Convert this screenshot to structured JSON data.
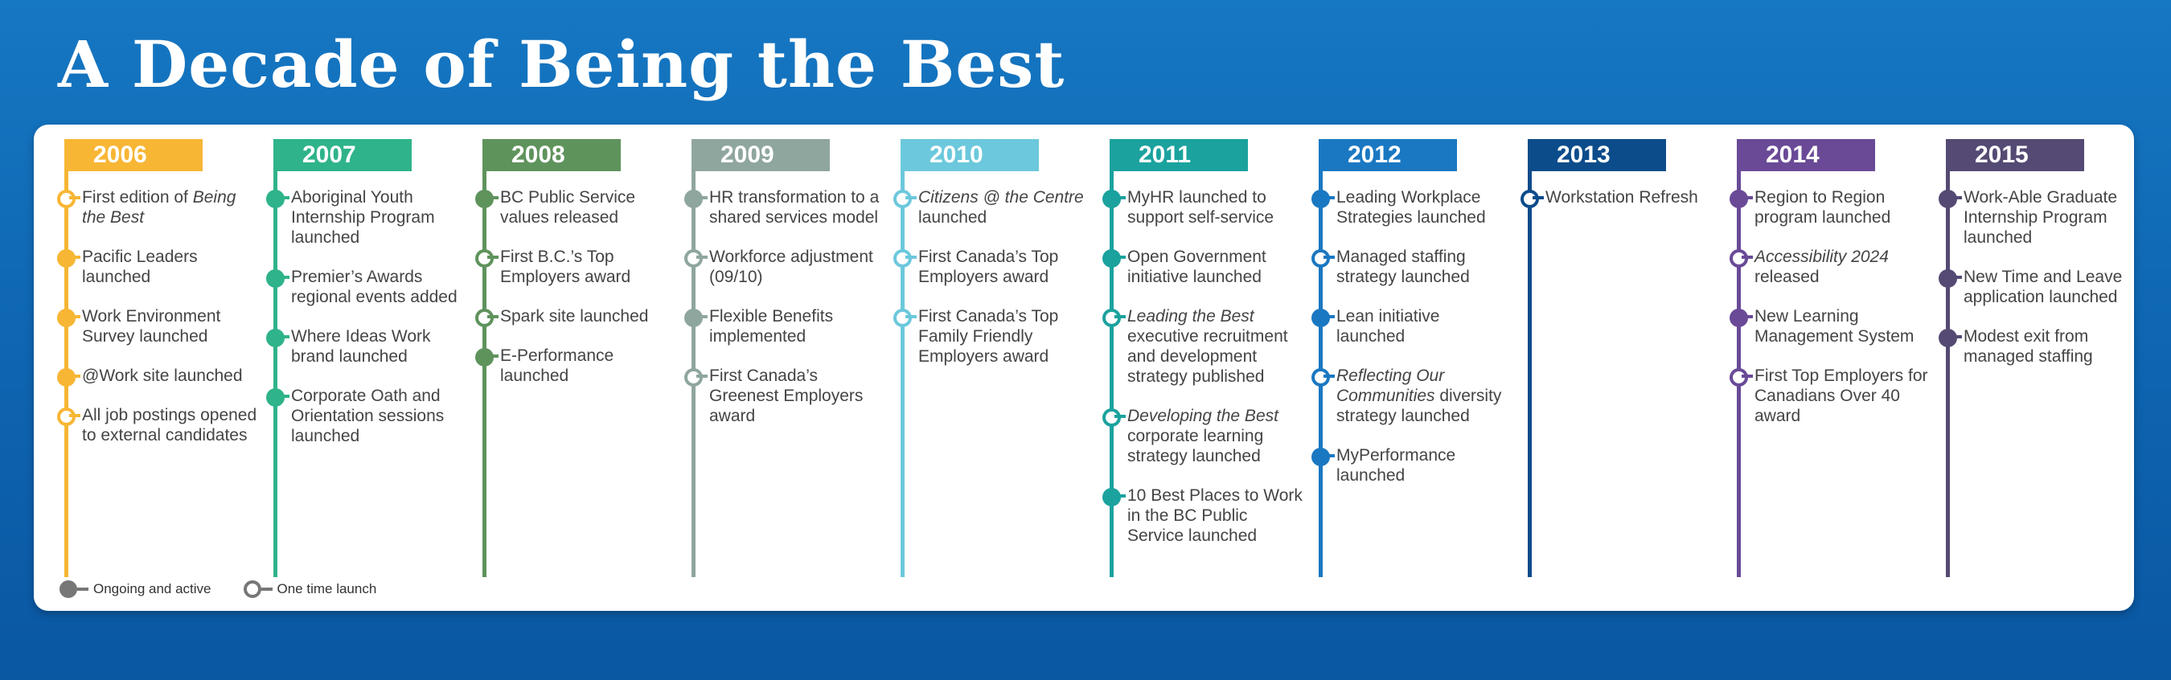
{
  "title": "A Decade of Being the Best",
  "legend": {
    "ongoing_label": "Ongoing and active",
    "one_time_label": "One time launch"
  },
  "timeline": [
    {
      "year": "2006",
      "color": "#f7b634",
      "events": [
        {
          "pre": "First edition of",
          "em": "Being the Best",
          "post": "",
          "type": "one-time"
        },
        {
          "pre": "Pacific Leaders launched",
          "em": "",
          "post": "",
          "type": "ongoing"
        },
        {
          "pre": "Work Environment Survey launched",
          "em": "",
          "post": "",
          "type": "ongoing"
        },
        {
          "pre": "@Work site launched",
          "em": "",
          "post": "",
          "type": "ongoing"
        },
        {
          "pre": "All job postings opened to external candidates",
          "em": "",
          "post": "",
          "type": "one-time"
        }
      ]
    },
    {
      "year": "2007",
      "color": "#2fb38a",
      "events": [
        {
          "pre": "Aboriginal Youth Internship Program launched",
          "em": "",
          "post": "",
          "type": "ongoing"
        },
        {
          "pre": "Premier’s Awards regional events added",
          "em": "",
          "post": "",
          "type": "ongoing"
        },
        {
          "pre": "Where Ideas Work brand launched",
          "em": "",
          "post": "",
          "type": "ongoing"
        },
        {
          "pre": "Corporate Oath and Orientation sessions launched",
          "em": "",
          "post": "",
          "type": "ongoing"
        }
      ]
    },
    {
      "year": "2008",
      "color": "#5f935c",
      "events": [
        {
          "pre": "BC Public Service values released",
          "em": "",
          "post": "",
          "type": "ongoing"
        },
        {
          "pre": "First B.C.’s Top Employers award",
          "em": "",
          "post": "",
          "type": "one-time"
        },
        {
          "pre": "Spark site launched",
          "em": "",
          "post": "",
          "type": "one-time"
        },
        {
          "pre": "E-Performance launched",
          "em": "",
          "post": "",
          "type": "ongoing"
        }
      ]
    },
    {
      "year": "2009",
      "color": "#8fa69e",
      "events": [
        {
          "pre": "HR transformation to a shared services model",
          "em": "",
          "post": "",
          "type": "ongoing"
        },
        {
          "pre": "Workforce adjustment (09/10)",
          "em": "",
          "post": "",
          "type": "one-time"
        },
        {
          "pre": "Flexible Benefits implemented",
          "em": "",
          "post": "",
          "type": "ongoing"
        },
        {
          "pre": "First Canada’s Greenest Employers award",
          "em": "",
          "post": "",
          "type": "one-time"
        }
      ]
    },
    {
      "year": "2010",
      "color": "#6cc8dc",
      "events": [
        {
          "pre": "",
          "em": "Citizens @ the Centre",
          "post": "launched",
          "type": "one-time"
        },
        {
          "pre": "First Canada’s Top Employers award",
          "em": "",
          "post": "",
          "type": "one-time"
        },
        {
          "pre": "First Canada’s Top Family Friendly Employers award",
          "em": "",
          "post": "",
          "type": "one-time"
        }
      ]
    },
    {
      "year": "2011",
      "color": "#1ba29e",
      "events": [
        {
          "pre": "MyHR launched to support self-service",
          "em": "",
          "post": "",
          "type": "ongoing"
        },
        {
          "pre": "Open Government initiative launched",
          "em": "",
          "post": "",
          "type": "ongoing"
        },
        {
          "pre": "",
          "em": "Leading the Best",
          "post": "executive recruitment and development strategy published",
          "type": "one-time"
        },
        {
          "pre": "",
          "em": "Developing the Best",
          "post": "corporate learning strategy launched",
          "type": "one-time"
        },
        {
          "pre": "10 Best Places to Work in the BC Public Service launched",
          "em": "",
          "post": "",
          "type": "ongoing"
        }
      ]
    },
    {
      "year": "2012",
      "color": "#1a78c2",
      "events": [
        {
          "pre": "Leading Workplace Strategies launched",
          "em": "",
          "post": "",
          "type": "ongoing"
        },
        {
          "pre": "Managed staffing strategy launched",
          "em": "",
          "post": "",
          "type": "one-time"
        },
        {
          "pre": "Lean initiative launched",
          "em": "",
          "post": "",
          "type": "ongoing"
        },
        {
          "pre": "",
          "em": "Reflecting Our Communities",
          "post": "diversity strategy launched",
          "type": "one-time"
        },
        {
          "pre": "MyPerformance launched",
          "em": "",
          "post": "",
          "type": "ongoing"
        }
      ]
    },
    {
      "year": "2013",
      "color": "#0d4c8a",
      "events": [
        {
          "pre": "Workstation Refresh",
          "em": "",
          "post": "",
          "type": "one-time"
        }
      ]
    },
    {
      "year": "2014",
      "color": "#6a4a97",
      "events": [
        {
          "pre": "Region to Region program launched",
          "em": "",
          "post": "",
          "type": "ongoing"
        },
        {
          "pre": "",
          "em": "Accessibility 2024",
          "post": "released",
          "type": "one-time"
        },
        {
          "pre": "New Learning Management System",
          "em": "",
          "post": "",
          "type": "ongoing"
        },
        {
          "pre": "First Top Employers for Canadians Over 40 award",
          "em": "",
          "post": "",
          "type": "one-time"
        }
      ]
    },
    {
      "year": "2015",
      "color": "#554a73",
      "events": [
        {
          "pre": "Work-Able Graduate Internship Program launched",
          "em": "",
          "post": "",
          "type": "ongoing"
        },
        {
          "pre": "New Time and Leave application launched",
          "em": "",
          "post": "",
          "type": "ongoing"
        },
        {
          "pre": "Modest exit from managed staffing",
          "em": "",
          "post": "",
          "type": "ongoing"
        }
      ]
    }
  ]
}
